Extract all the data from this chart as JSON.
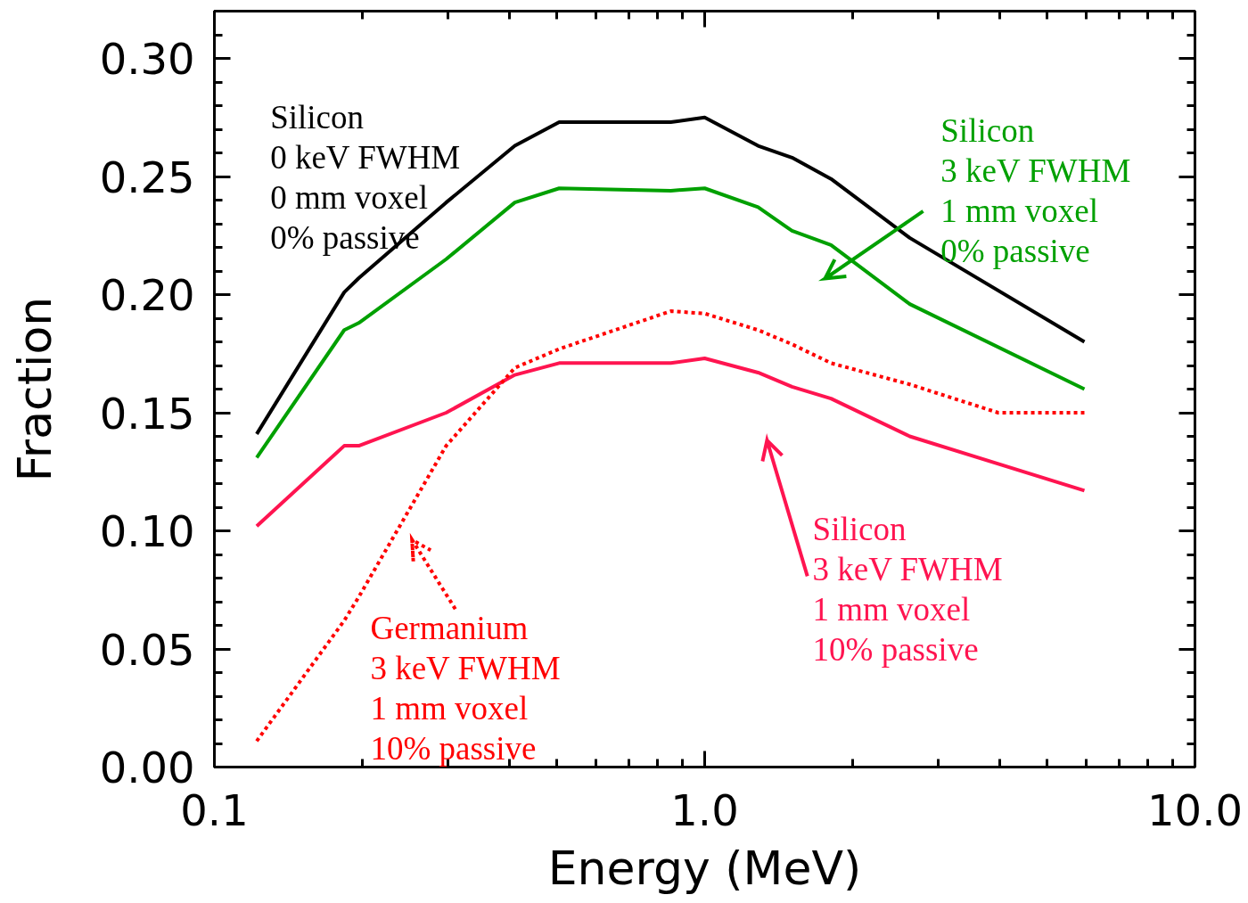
{
  "chart_data": {
    "type": "line",
    "xlabel": "Energy (MeV)",
    "ylabel": "Fraction",
    "log": "x",
    "x": [
      0.122,
      0.184,
      0.197,
      0.297,
      0.41,
      0.505,
      0.853,
      1.0,
      1.285,
      1.507,
      1.81,
      2.62,
      5.95
    ],
    "xlim": [
      0.1,
      10
    ],
    "xticks": [
      {
        "value": 0.1,
        "label": "0.1"
      },
      {
        "value": 1,
        "label": "1.0"
      },
      {
        "value": 10,
        "label": "10.0"
      }
    ],
    "ylim": [
      0,
      0.32
    ],
    "yticks": [
      {
        "value": 0,
        "label": "0.00"
      },
      {
        "value": 0.05,
        "label": "0.05"
      },
      {
        "value": 0.1,
        "label": "0.10"
      },
      {
        "value": 0.15,
        "label": "0.15"
      },
      {
        "value": 0.2,
        "label": "0.20"
      },
      {
        "value": 0.25,
        "label": "0.25"
      },
      {
        "value": 0.3,
        "label": "0.30"
      }
    ],
    "grid": false,
    "series": [
      {
        "name": "Silicon\n0 keV FWHM\n0 mm voxel\n0% passive",
        "color": "#000000",
        "line_style": "solid",
        "values": [
          0.141,
          0.201,
          0.207,
          0.239,
          0.263,
          0.273,
          0.273,
          0.275,
          0.263,
          0.258,
          0.249,
          0.224,
          0.18
        ]
      },
      {
        "name": "Silicon\n3 keV FWHM\n1 mm voxel\n0% passive",
        "color": "#00a000",
        "line_style": "solid",
        "values": [
          0.131,
          0.185,
          0.188,
          0.215,
          0.239,
          0.245,
          0.244,
          0.245,
          0.237,
          0.227,
          0.221,
          0.196,
          0.16
        ]
      },
      {
        "name": "Silicon\n3 keV FWHM\n1 mm voxel\n10% passive",
        "color": "#ff1450",
        "line_style": "solid",
        "values": [
          0.102,
          0.136,
          0.136,
          0.15,
          0.166,
          0.171,
          0.171,
          0.173,
          0.167,
          0.161,
          0.156,
          0.14,
          0.117
        ]
      },
      {
        "name": "Germanium\n3 keV FWHM\n1 mm voxel\n10% passive",
        "color": "#ff0000",
        "line_style": "dotted",
        "x": [
          0.122,
          0.184,
          0.197,
          0.297,
          0.41,
          0.505,
          0.853,
          1.0,
          1.285,
          1.507,
          1.81,
          2.62,
          3.97,
          5.95
        ],
        "values": [
          0.011,
          0.062,
          0.072,
          0.136,
          0.169,
          0.177,
          0.193,
          0.192,
          0.185,
          0.179,
          0.171,
          0.162,
          0.15,
          0.15
        ]
      }
    ]
  }
}
